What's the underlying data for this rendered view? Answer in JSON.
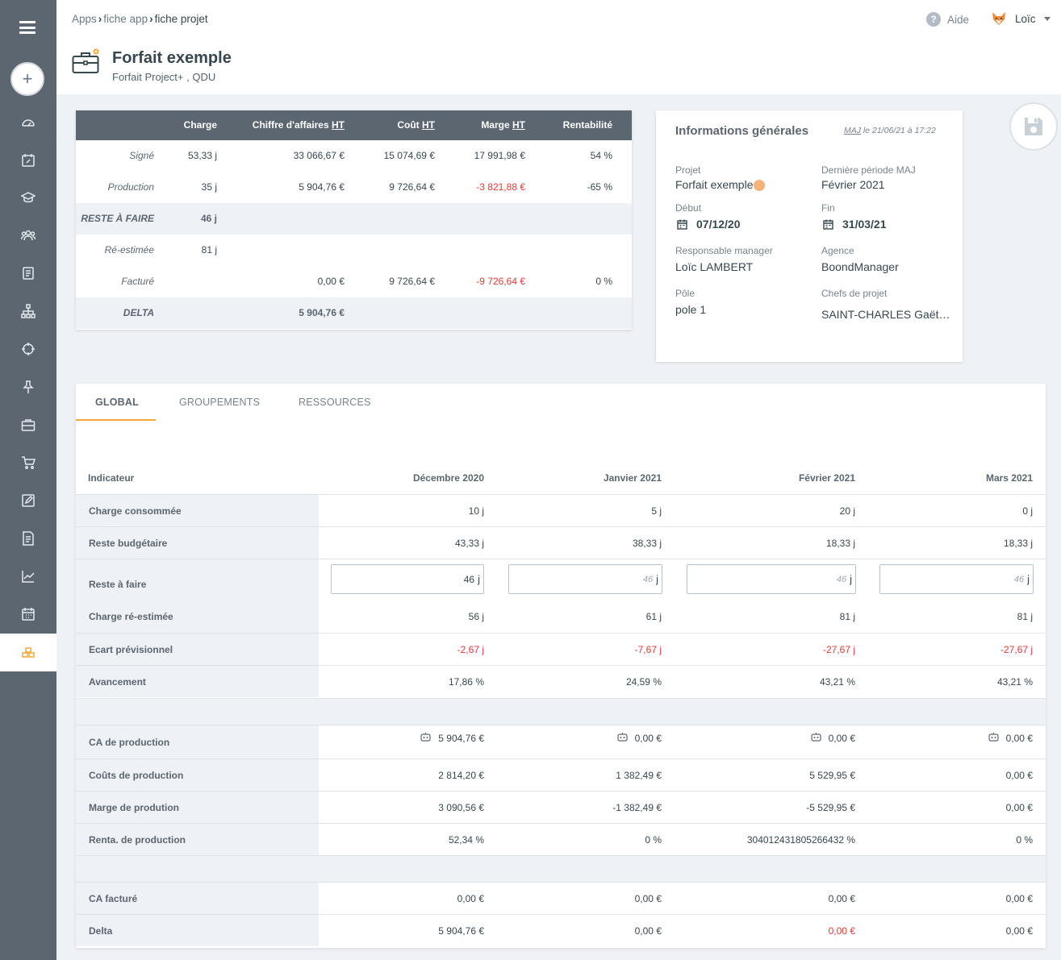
{
  "breadcrumb": {
    "items": [
      "Apps",
      "fiche app",
      "fiche projet"
    ]
  },
  "header": {
    "help_label": "Aide",
    "user_name": "Loïc"
  },
  "page": {
    "title": "Forfait exemple",
    "subtitle": "Forfait Project+ , QDU"
  },
  "sidebar": {
    "items": [
      "dashboard-icon",
      "calendar-edit-icon",
      "graduation-icon",
      "team-icon",
      "book-icon",
      "org-chart-icon",
      "target-icon",
      "pin-icon",
      "briefcase-icon",
      "cart-icon",
      "edit-icon",
      "invoice-icon",
      "chart-icon",
      "calendar-grid-icon",
      "boxes-icon"
    ],
    "active": "boxes-icon"
  },
  "summary": {
    "headers": [
      "Charge",
      "Chiffre d'affaires HT",
      "Coût HT",
      "Marge HT",
      "Rentabilité"
    ],
    "header_parts": {
      "ca_prefix": "Chiffre d'affaires ",
      "cout_prefix": "Coût ",
      "marge_prefix": "Marge ",
      "ht": "HT"
    },
    "rows": {
      "signe": {
        "label": "Signé",
        "charge": "53,33 j",
        "ca": "33 066,67 €",
        "cout": "15 074,69 €",
        "marge": "17 991,98 €",
        "renta": "54 %"
      },
      "production": {
        "label": "Production",
        "charge": "35 j",
        "ca": "5 904,76 €",
        "cout": "9 726,64 €",
        "marge": "-3 821,88 €",
        "renta": "-65 %"
      },
      "raf": {
        "label": "RESTE À FAIRE",
        "charge": "46 j"
      },
      "reestimee": {
        "label": "Ré-estimée",
        "charge": "81 j"
      },
      "facture": {
        "label": "Facturé",
        "ca": "0,00 €",
        "cout": "9 726,64 €",
        "marge": "-9 726,64 €",
        "renta": "0 %"
      },
      "delta": {
        "label": "DELTA",
        "ca": "5 904,76 €"
      }
    }
  },
  "info": {
    "title": "Informations générales",
    "maj_prefix": "MAJ",
    "maj_suffix": " le 21/06/21 à 17:22",
    "projet_label": "Projet",
    "projet_value": "Forfait exemple",
    "derniere_label": "Dernière période MAJ",
    "derniere_value": "Février 2021",
    "debut_label": "Début",
    "debut_value": "07/12/20",
    "fin_label": "Fin",
    "fin_value": "31/03/21",
    "resp_label": "Responsable manager",
    "resp_value": "Loïc LAMBERT",
    "agence_label": "Agence",
    "agence_value": "BoondManager",
    "pole_label": "Pôle",
    "pole_value": "pole 1",
    "chefs_label": "Chefs de projet",
    "chefs_value": "SAINT-CHARLES Gaët…"
  },
  "tabs": [
    "GLOBAL",
    "GROUPEMENTS",
    "RESSOURCES"
  ],
  "grid": {
    "indicator_header": "Indicateur",
    "months": [
      "Décembre 2020",
      "Janvier 2021",
      "Février 2021",
      "Mars 2021"
    ],
    "charge_consommee": {
      "label": "Charge consommée",
      "values": [
        "10 j",
        "5 j",
        "20 j",
        "0 j"
      ]
    },
    "reste_budgetaire": {
      "label": "Reste budgétaire",
      "values": [
        "43,33 j",
        "38,33 j",
        "18,33 j",
        "18,33 j"
      ]
    },
    "reste_a_faire": {
      "label": "Reste à faire",
      "values": [
        "46",
        "46",
        "46",
        "46"
      ],
      "unit": "j"
    },
    "charge_reestimee": {
      "label": "Charge ré-estimée",
      "values": [
        "56 j",
        "61 j",
        "81 j",
        "81 j"
      ]
    },
    "ecart": {
      "label": "Ecart prévisionnel",
      "values": [
        "-2,67 j",
        "-7,67 j",
        "-27,67 j",
        "-27,67 j"
      ]
    },
    "avancement": {
      "label": "Avancement",
      "values": [
        "17,86 %",
        "24,59 %",
        "43,21 %",
        "43,21 %"
      ]
    },
    "ca_production": {
      "label": "CA de production",
      "values": [
        "5 904,76 €",
        "0,00 €",
        "0,00 €",
        "0,00 €"
      ]
    },
    "couts_production": {
      "label": "Coûts de production",
      "values": [
        "2 814,20 €",
        "1 382,49 €",
        "5 529,95 €",
        "0,00 €"
      ]
    },
    "marge_production": {
      "label": "Marge de prodution",
      "values": [
        "3 090,56 €",
        "-1 382,49 €",
        "-5 529,95 €",
        "0,00 €"
      ]
    },
    "renta_production": {
      "label": "Renta. de production",
      "values": [
        "52,34 %",
        "0 %",
        "304012431805266432 %",
        "0 %"
      ]
    },
    "ca_facture": {
      "label": "CA facturé",
      "values": [
        "0,00 €",
        "0,00 €",
        "0,00 €",
        "0,00 €"
      ]
    },
    "delta": {
      "label": "Delta",
      "values": [
        "5 904,76 €",
        "0,00 €",
        "0,00 €",
        "0,00 €"
      ]
    }
  },
  "colors": {
    "sidebar": "#5b6670",
    "accent": "#f3a839",
    "negative": "#e53935",
    "background": "#eef1f6"
  }
}
